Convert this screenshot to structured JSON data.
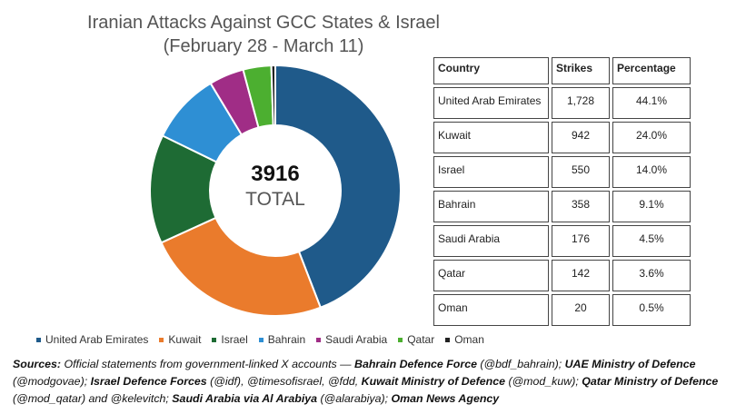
{
  "title": {
    "line1": "Iranian Attacks Against GCC States & Israel",
    "line2": "(February 28 - March 11)"
  },
  "center": {
    "value": "3916",
    "label": "TOTAL"
  },
  "table": {
    "headers": [
      "Country",
      "Strikes",
      "Percentage"
    ],
    "rows": [
      [
        "United Arab Emirates",
        "1,728",
        "44.1%"
      ],
      [
        "Kuwait",
        "942",
        "24.0%"
      ],
      [
        "Israel",
        "550",
        "14.0%"
      ],
      [
        "Bahrain",
        "358",
        "9.1%"
      ],
      [
        "Saudi Arabia",
        "176",
        "4.5%"
      ],
      [
        "Qatar",
        "142",
        "3.6%"
      ],
      [
        "Oman",
        "20",
        "0.5%"
      ]
    ]
  },
  "legend": [
    "United Arab Emirates",
    "Kuwait",
    "Israel",
    "Bahrain",
    "Saudi Arabia",
    "Qatar",
    "Oman"
  ],
  "sources": {
    "s1": "Sources:",
    "t1": " Official statements from government-linked X accounts — ",
    "s2": "Bahrain Defence Force",
    "t2": " (@bdf_bahrain); ",
    "s3": "UAE Ministry of Defence",
    "t3": " (@modgovae); ",
    "s4": "Israel Defence Forces",
    "t4": " (@idf), @timesofisrael, @fdd, ",
    "s5": "Kuwait Ministry of Defence",
    "t5": " (@mod_kuw); ",
    "s6": "Qatar Ministry of Defence",
    "t6": " (@mod_qatar) and @kelevitch; ",
    "s7": "Saudi Arabia via Al Arabiya",
    "t7": " (@alarabiya); ",
    "s8": "Oman News Agency"
  },
  "chart_data": {
    "type": "pie",
    "style": "donut",
    "categories": [
      "United Arab Emirates",
      "Kuwait",
      "Israel",
      "Bahrain",
      "Saudi Arabia",
      "Qatar",
      "Oman"
    ],
    "values": [
      1728,
      942,
      550,
      358,
      176,
      142,
      20
    ],
    "colors": [
      "#1f5a8a",
      "#ea7b2c",
      "#1e6b34",
      "#2e8fd4",
      "#a02d86",
      "#4caf30",
      "#222222"
    ],
    "legend_position": "bottom"
  }
}
